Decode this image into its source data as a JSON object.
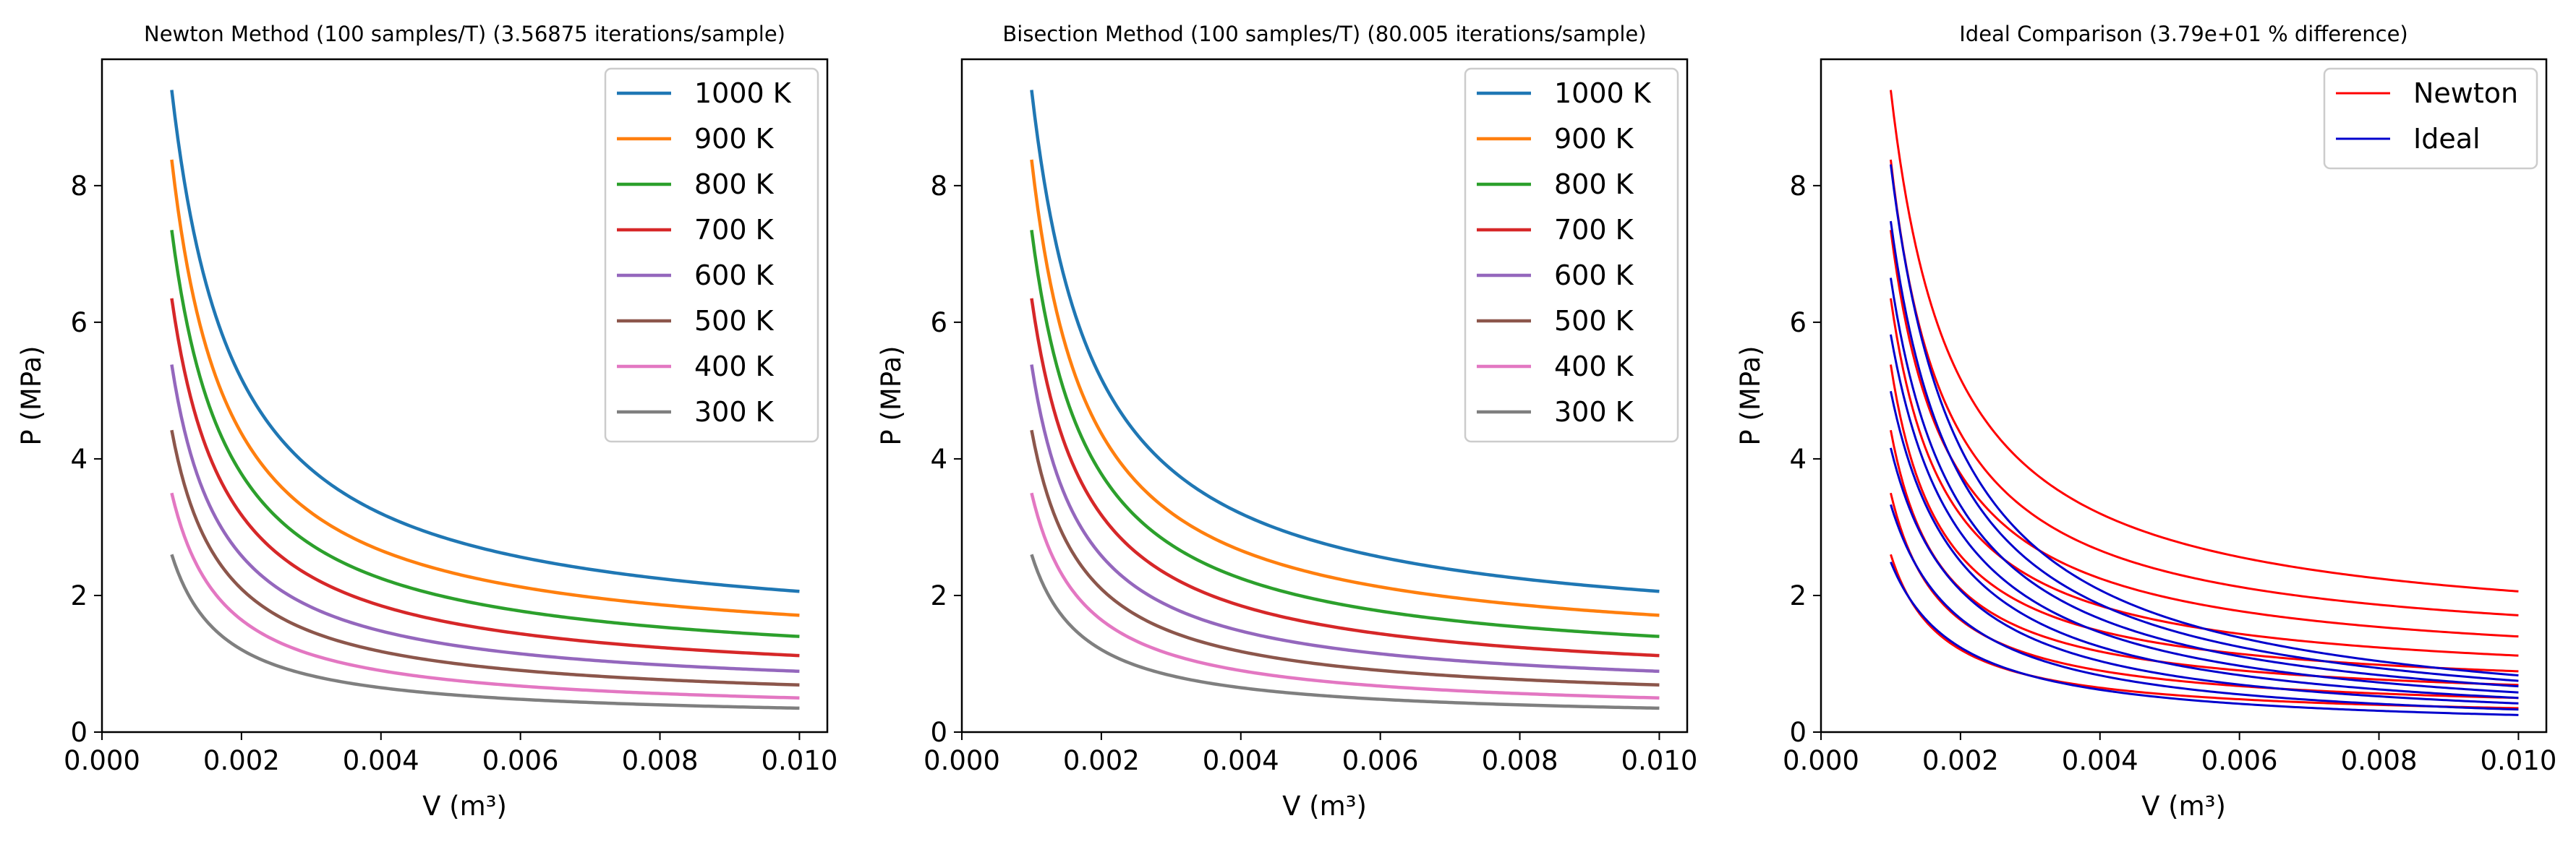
{
  "chart_data": [
    {
      "type": "line",
      "title": "Newton Method (100 samples/T) (3.56875 iterations/sample)",
      "xlabel": "V (m³)",
      "ylabel": "P (MPa)",
      "xlim": [
        0.0,
        0.0104
      ],
      "ylim": [
        0,
        9.85
      ],
      "xticks": [
        "0.000",
        "0.002",
        "0.004",
        "0.006",
        "0.008",
        "0.010"
      ],
      "yticks": [
        "0",
        "2",
        "4",
        "6",
        "8"
      ],
      "x_range": [
        0.001,
        0.01
      ],
      "curve_model": "P = a + b / (V - c)",
      "legend": "top-right",
      "grid": false,
      "series": [
        {
          "name": "1000 K",
          "color": "#1f77b4",
          "points": {
            "0.001": 9.4,
            "0.002": 5.39,
            "0.004": 3.2,
            "0.006": 2.55,
            "0.010": 2.06
          }
        },
        {
          "name": "900 K",
          "color": "#ff7f0e",
          "points": {
            "0.001": 8.38,
            "0.002": 4.66,
            "0.004": 2.66,
            "0.006": 2.09,
            "0.010": 1.71
          }
        },
        {
          "name": "800 K",
          "color": "#2ca02c",
          "points": {
            "0.001": 7.35,
            "0.002": 4.0,
            "0.004": 2.25,
            "0.006": 1.72,
            "0.010": 1.4
          }
        },
        {
          "name": "700 K",
          "color": "#d62728",
          "points": {
            "0.001": 6.35,
            "0.002": 3.4,
            "0.004": 1.85,
            "0.006": 1.4,
            "0.010": 1.12
          }
        },
        {
          "name": "600 K",
          "color": "#9467bd",
          "points": {
            "0.001": 5.38,
            "0.002": 2.85,
            "0.004": 1.48,
            "0.006": 1.11,
            "0.010": 0.89
          }
        },
        {
          "name": "500 K",
          "color": "#8c564b",
          "points": {
            "0.001": 4.42,
            "0.002": 2.3,
            "0.004": 1.18,
            "0.006": 0.88,
            "0.010": 0.69
          }
        },
        {
          "name": "400 K",
          "color": "#e377c2",
          "points": {
            "0.001": 3.5,
            "0.002": 1.75,
            "0.004": 0.9,
            "0.006": 0.67,
            "0.010": 0.5
          }
        },
        {
          "name": "300 K",
          "color": "#7f7f7f",
          "points": {
            "0.001": 2.6,
            "0.002": 1.3,
            "0.004": 0.65,
            "0.006": 0.47,
            "0.010": 0.35
          }
        }
      ]
    },
    {
      "type": "line",
      "title": "Bisection Method (100 samples/T) (80.005 iterations/sample)",
      "xlabel": "V (m³)",
      "ylabel": "P (MPa)",
      "xlim": [
        0.0,
        0.0104
      ],
      "ylim": [
        0,
        9.85
      ],
      "xticks": [
        "0.000",
        "0.002",
        "0.004",
        "0.006",
        "0.008",
        "0.010"
      ],
      "yticks": [
        "0",
        "2",
        "4",
        "6",
        "8"
      ],
      "x_range": [
        0.001,
        0.01
      ],
      "curve_model": "P = a + b / (V - c)",
      "legend": "top-right",
      "grid": false,
      "series": [
        {
          "name": "1000 K",
          "color": "#1f77b4",
          "points": {
            "0.001": 9.4,
            "0.002": 5.39,
            "0.004": 3.2,
            "0.006": 2.55,
            "0.010": 2.06
          }
        },
        {
          "name": "900 K",
          "color": "#ff7f0e",
          "points": {
            "0.001": 8.38,
            "0.002": 4.66,
            "0.004": 2.66,
            "0.006": 2.09,
            "0.010": 1.71
          }
        },
        {
          "name": "800 K",
          "color": "#2ca02c",
          "points": {
            "0.001": 7.35,
            "0.002": 4.0,
            "0.004": 2.25,
            "0.006": 1.72,
            "0.010": 1.4
          }
        },
        {
          "name": "700 K",
          "color": "#d62728",
          "points": {
            "0.001": 6.35,
            "0.002": 3.4,
            "0.004": 1.85,
            "0.006": 1.4,
            "0.010": 1.12
          }
        },
        {
          "name": "600 K",
          "color": "#9467bd",
          "points": {
            "0.001": 5.38,
            "0.002": 2.85,
            "0.004": 1.48,
            "0.006": 1.11,
            "0.010": 0.89
          }
        },
        {
          "name": "500 K",
          "color": "#8c564b",
          "points": {
            "0.001": 4.42,
            "0.002": 2.3,
            "0.004": 1.18,
            "0.006": 0.88,
            "0.010": 0.69
          }
        },
        {
          "name": "400 K",
          "color": "#e377c2",
          "points": {
            "0.001": 3.5,
            "0.002": 1.75,
            "0.004": 0.9,
            "0.006": 0.67,
            "0.010": 0.5
          }
        },
        {
          "name": "300 K",
          "color": "#7f7f7f",
          "points": {
            "0.001": 2.6,
            "0.002": 1.3,
            "0.004": 0.65,
            "0.006": 0.47,
            "0.010": 0.35
          }
        }
      ]
    },
    {
      "type": "line",
      "title": "Ideal Comparison (3.79e+01 % difference)",
      "xlabel": "V (m³)",
      "ylabel": "P (MPa)",
      "xlim": [
        0.0,
        0.0104
      ],
      "ylim": [
        0,
        9.85
      ],
      "xticks": [
        "0.000",
        "0.002",
        "0.004",
        "0.006",
        "0.008",
        "0.010"
      ],
      "yticks": [
        "0",
        "2",
        "4",
        "6",
        "8"
      ],
      "x_range": [
        0.001,
        0.01
      ],
      "curve_model": "P = a + b / (V - c)",
      "legend": "top-right",
      "grid": false,
      "legend_entries": [
        {
          "name": "Newton",
          "color": "#ff0000"
        },
        {
          "name": "Ideal",
          "color": "#0000cd"
        }
      ],
      "series": [
        {
          "group": "Newton",
          "color": "#ff0000",
          "points": {
            "0.001": 9.4,
            "0.002": 5.39,
            "0.004": 3.2,
            "0.006": 2.55,
            "0.010": 2.06
          }
        },
        {
          "group": "Newton",
          "color": "#ff0000",
          "points": {
            "0.001": 8.38,
            "0.002": 4.66,
            "0.004": 2.66,
            "0.006": 2.09,
            "0.010": 1.71
          }
        },
        {
          "group": "Newton",
          "color": "#ff0000",
          "points": {
            "0.001": 7.35,
            "0.002": 4.0,
            "0.004": 2.25,
            "0.006": 1.72,
            "0.010": 1.4
          }
        },
        {
          "group": "Newton",
          "color": "#ff0000",
          "points": {
            "0.001": 6.35,
            "0.002": 3.4,
            "0.004": 1.85,
            "0.006": 1.4,
            "0.010": 1.12
          }
        },
        {
          "group": "Newton",
          "color": "#ff0000",
          "points": {
            "0.001": 5.38,
            "0.002": 2.85,
            "0.004": 1.48,
            "0.006": 1.11,
            "0.010": 0.89
          }
        },
        {
          "group": "Newton",
          "color": "#ff0000",
          "points": {
            "0.001": 4.42,
            "0.002": 2.3,
            "0.004": 1.18,
            "0.006": 0.88,
            "0.010": 0.69
          }
        },
        {
          "group": "Newton",
          "color": "#ff0000",
          "points": {
            "0.001": 3.5,
            "0.002": 1.75,
            "0.004": 0.9,
            "0.006": 0.67,
            "0.010": 0.5
          }
        },
        {
          "group": "Newton",
          "color": "#ff0000",
          "points": {
            "0.001": 2.6,
            "0.002": 1.3,
            "0.004": 0.65,
            "0.006": 0.47,
            "0.010": 0.35
          }
        },
        {
          "group": "Ideal",
          "color": "#0000cd",
          "points": {
            "0.001": 8.31,
            "0.002": 4.16,
            "0.004": 2.08,
            "0.006": 1.39,
            "0.010": 0.83
          }
        },
        {
          "group": "Ideal",
          "color": "#0000cd",
          "points": {
            "0.001": 7.48,
            "0.002": 3.74,
            "0.004": 1.87,
            "0.006": 1.25,
            "0.010": 0.75
          }
        },
        {
          "group": "Ideal",
          "color": "#0000cd",
          "points": {
            "0.001": 6.65,
            "0.002": 3.33,
            "0.004": 1.66,
            "0.006": 1.11,
            "0.010": 0.67
          }
        },
        {
          "group": "Ideal",
          "color": "#0000cd",
          "points": {
            "0.001": 5.82,
            "0.002": 2.91,
            "0.004": 1.46,
            "0.006": 0.97,
            "0.010": 0.58
          }
        },
        {
          "group": "Ideal",
          "color": "#0000cd",
          "points": {
            "0.001": 4.99,
            "0.002": 2.49,
            "0.004": 1.25,
            "0.006": 0.83,
            "0.010": 0.5
          }
        },
        {
          "group": "Ideal",
          "color": "#0000cd",
          "points": {
            "0.001": 4.16,
            "0.002": 2.08,
            "0.004": 1.04,
            "0.006": 0.69,
            "0.010": 0.42
          }
        },
        {
          "group": "Ideal",
          "color": "#0000cd",
          "points": {
            "0.001": 3.33,
            "0.002": 1.66,
            "0.004": 0.83,
            "0.006": 0.55,
            "0.010": 0.33
          }
        },
        {
          "group": "Ideal",
          "color": "#0000cd",
          "points": {
            "0.001": 2.49,
            "0.002": 1.25,
            "0.004": 0.62,
            "0.006": 0.42,
            "0.010": 0.25
          }
        }
      ]
    }
  ]
}
